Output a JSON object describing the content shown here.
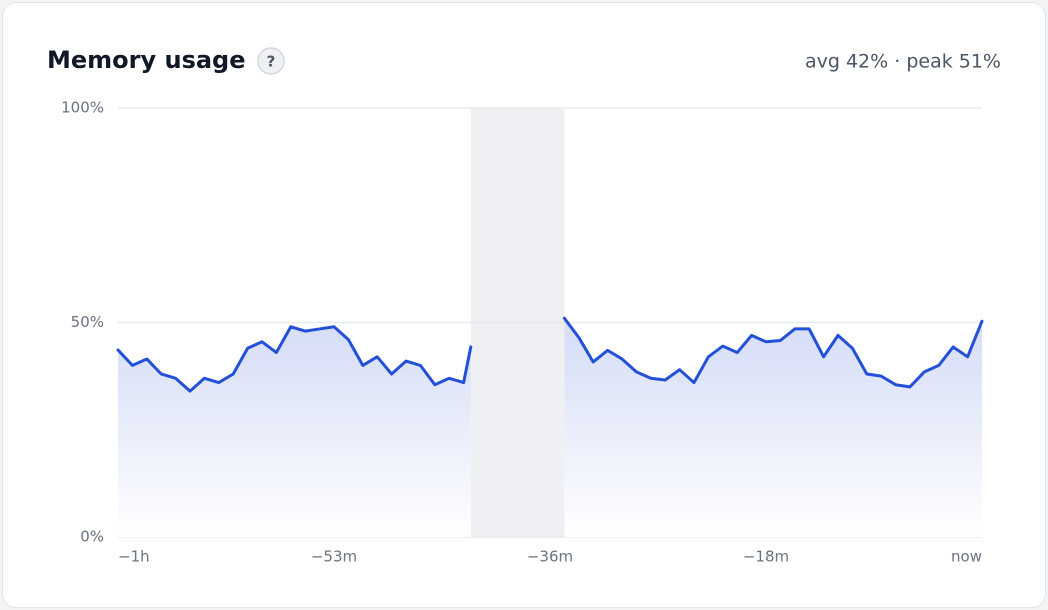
{
  "chart_data": {
    "type": "line",
    "title": "Memory usage",
    "help_label": "?",
    "summary": "avg 42% · peak 51%",
    "color": "#2350d8",
    "grid": true,
    "x": [
      0,
      2,
      4,
      6,
      8,
      10,
      12,
      14,
      16,
      18,
      20,
      22,
      24,
      26,
      28,
      30,
      32,
      34,
      36,
      38,
      40,
      42,
      44,
      46,
      48,
      49,
      55,
      62,
      64,
      66,
      68,
      70,
      72,
      74,
      76,
      78,
      80,
      82,
      84,
      86,
      88,
      90,
      92,
      94,
      96,
      98,
      100,
      102,
      104,
      106,
      108,
      110,
      112,
      114,
      116,
      118,
      120
    ],
    "values": [
      43.6,
      40,
      41.5,
      38,
      37,
      34,
      37,
      36,
      38,
      44,
      45.5,
      43,
      49,
      48,
      48.5,
      49,
      46,
      40,
      42,
      38,
      41,
      40,
      35.5,
      37,
      36,
      44.3,
      null,
      51,
      46.5,
      40.8,
      43.5,
      41.5,
      38.5,
      37,
      36.6,
      39,
      36,
      42,
      44.5,
      43,
      47,
      45.5,
      45.8,
      48.5,
      48.5,
      42,
      47,
      44,
      38,
      37.5,
      35.5,
      35,
      38.5,
      40,
      44.3,
      42,
      50.3
    ],
    "xlim": [
      0,
      120
    ],
    "xticks": [
      {
        "value": 0,
        "label": "−1h"
      },
      {
        "value": 30,
        "label": "−53m"
      },
      {
        "value": 60,
        "label": "−36m"
      },
      {
        "value": 90,
        "label": "−18m"
      },
      {
        "value": 120,
        "label": "now"
      }
    ],
    "ylim": [
      0,
      100
    ],
    "yticks": [
      {
        "value": 0,
        "label": "0%"
      },
      {
        "value": 50,
        "label": "50%"
      },
      {
        "value": 100,
        "label": "100%"
      }
    ]
  }
}
